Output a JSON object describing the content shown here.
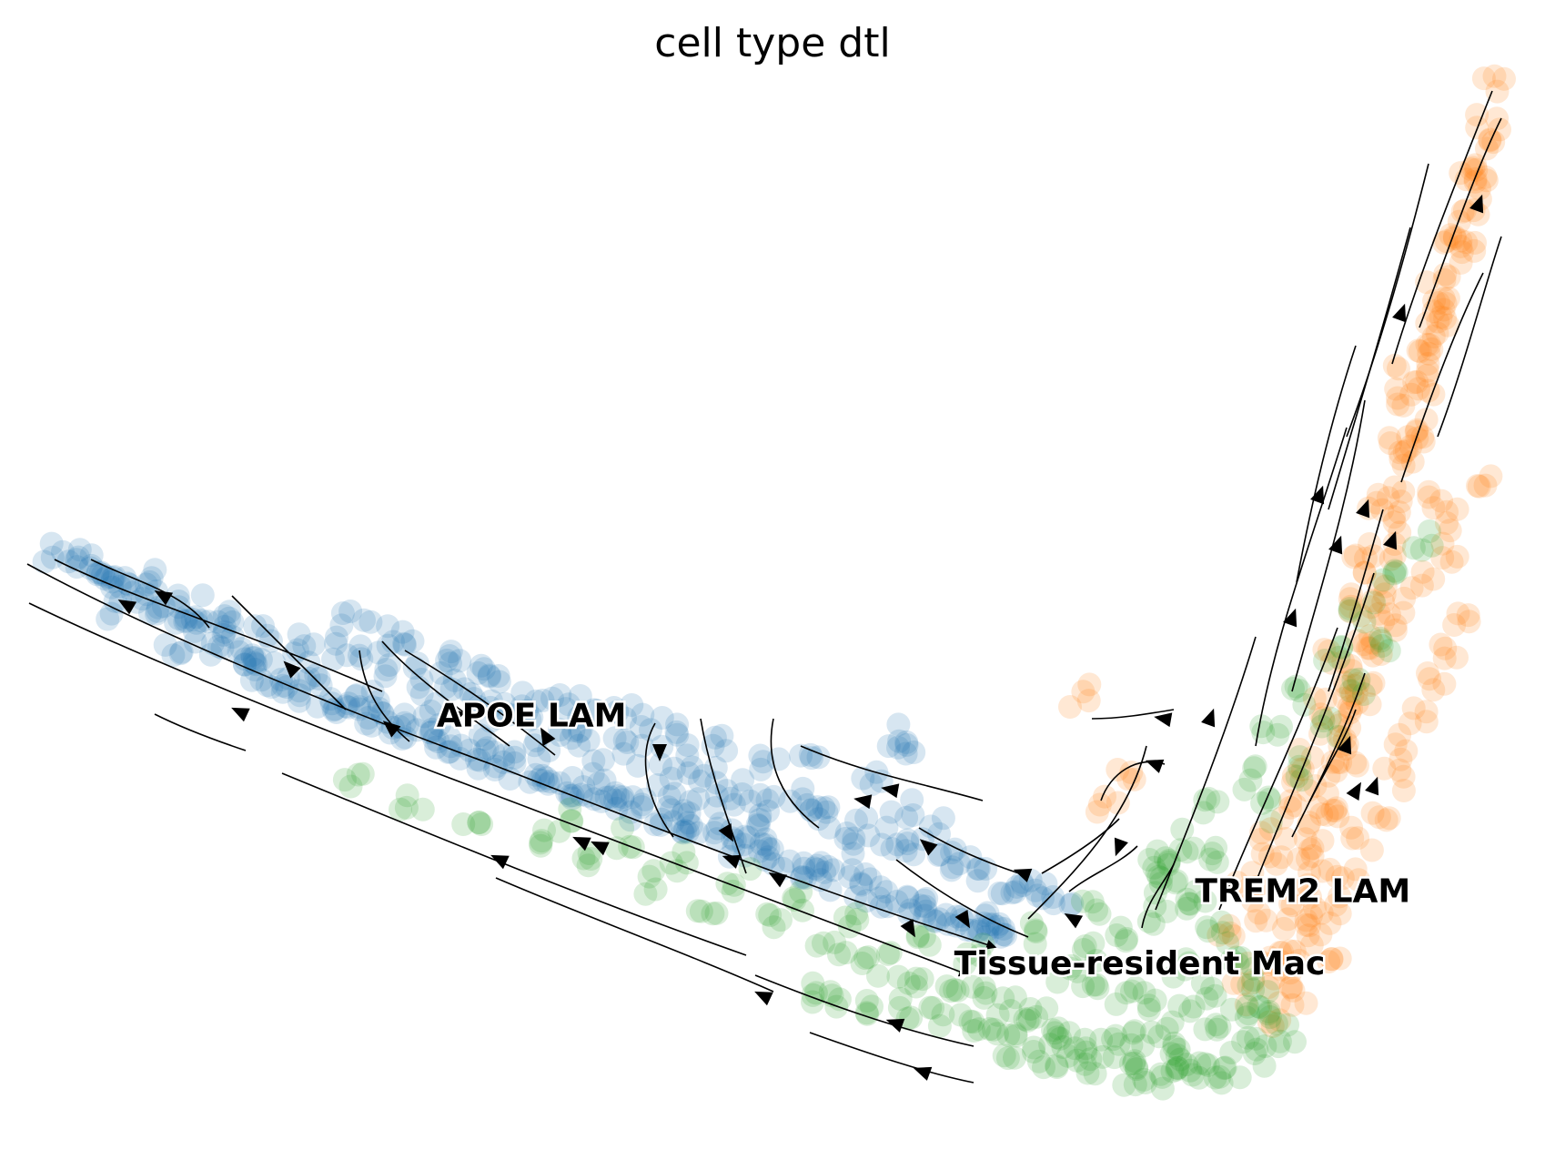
{
  "chart_data": {
    "type": "scatter",
    "title": "cell type dtl",
    "xlabel": "",
    "ylabel": "",
    "grid": false,
    "axes_visible": false,
    "legend": "on data",
    "overlay": "velocity streamlines with arrows",
    "x_range": [
      0,
      100
    ],
    "y_range": [
      0,
      100
    ],
    "series": [
      {
        "name": "APOE LAM",
        "color": "#1f77b4",
        "label_pos": [
          34,
          38
        ],
        "points": [
          [
            2,
            55
          ],
          [
            3,
            54.5
          ],
          [
            4,
            53.5
          ],
          [
            5,
            52.5
          ],
          [
            6,
            52
          ],
          [
            7,
            51
          ],
          [
            8,
            50
          ],
          [
            9,
            49
          ],
          [
            10,
            48.5
          ],
          [
            11,
            48
          ],
          [
            12,
            47
          ],
          [
            13,
            46
          ],
          [
            14,
            45
          ],
          [
            15,
            44
          ],
          [
            16,
            43.5
          ],
          [
            17,
            43
          ],
          [
            18,
            42
          ],
          [
            19,
            41.5
          ],
          [
            20,
            40.5
          ],
          [
            21,
            40
          ],
          [
            22,
            39.5
          ],
          [
            23,
            39
          ],
          [
            24,
            38.5
          ],
          [
            25,
            38
          ],
          [
            26,
            37.5
          ],
          [
            27,
            37
          ],
          [
            28,
            36.5
          ],
          [
            29,
            36
          ],
          [
            30,
            35.5
          ],
          [
            31,
            35
          ],
          [
            32,
            34.5
          ],
          [
            33,
            34
          ],
          [
            34,
            33.5
          ],
          [
            35,
            33
          ],
          [
            36,
            32.5
          ],
          [
            37,
            32
          ],
          [
            38,
            31.5
          ],
          [
            39,
            31
          ],
          [
            40,
            30.5
          ],
          [
            41,
            30
          ],
          [
            42,
            29.5
          ],
          [
            43,
            29
          ],
          [
            44,
            28.5
          ],
          [
            45,
            28
          ],
          [
            46,
            27.5
          ],
          [
            47,
            27
          ],
          [
            48,
            26.5
          ],
          [
            49,
            26
          ],
          [
            50,
            25.5
          ],
          [
            51,
            25
          ],
          [
            52,
            24.5
          ],
          [
            53,
            24
          ],
          [
            54,
            23.5
          ],
          [
            55,
            23
          ],
          [
            56,
            22.5
          ],
          [
            57,
            22
          ],
          [
            58,
            21.5
          ],
          [
            59,
            21
          ],
          [
            60,
            20.5
          ],
          [
            61,
            20
          ],
          [
            62,
            19.5
          ],
          [
            63,
            19
          ],
          [
            64,
            18.5
          ],
          [
            65,
            18
          ],
          [
            66,
            17.5
          ],
          [
            14,
            48
          ],
          [
            16,
            47
          ],
          [
            18,
            46
          ],
          [
            20,
            45.5
          ],
          [
            22,
            45
          ],
          [
            24,
            44
          ],
          [
            26,
            43
          ],
          [
            28,
            42
          ],
          [
            30,
            41
          ],
          [
            32,
            40
          ],
          [
            34,
            39
          ],
          [
            36,
            38
          ],
          [
            38,
            37
          ],
          [
            40,
            36
          ],
          [
            42,
            35
          ],
          [
            44,
            34
          ],
          [
            46,
            33
          ],
          [
            48,
            32
          ],
          [
            50,
            31
          ],
          [
            52,
            30
          ],
          [
            54,
            29
          ],
          [
            56,
            28
          ],
          [
            58,
            27
          ],
          [
            60,
            26
          ],
          [
            62,
            25
          ],
          [
            64,
            24
          ],
          [
            66,
            23
          ],
          [
            68,
            22
          ],
          [
            70,
            21
          ],
          [
            58,
            37
          ],
          [
            60,
            36
          ],
          [
            44,
            37
          ],
          [
            47,
            36
          ],
          [
            50,
            35
          ],
          [
            53,
            34.5
          ],
          [
            38,
            40
          ],
          [
            40,
            39
          ],
          [
            42,
            38
          ],
          [
            34,
            41
          ],
          [
            36,
            40.5
          ],
          [
            30,
            44
          ],
          [
            32,
            43
          ],
          [
            26,
            46
          ],
          [
            28,
            45
          ],
          [
            22,
            48
          ],
          [
            24,
            47
          ],
          [
            5,
            53
          ],
          [
            8,
            52
          ],
          [
            11,
            50
          ],
          [
            13,
            49
          ],
          [
            45,
            30
          ],
          [
            55,
            26
          ],
          [
            65,
            20
          ],
          [
            67,
            22
          ],
          [
            63,
            25
          ],
          [
            59,
            30
          ],
          [
            61,
            28
          ],
          [
            57,
            33
          ],
          [
            53,
            31
          ],
          [
            49,
            29
          ],
          [
            47,
            31
          ],
          [
            43,
            32
          ],
          [
            39,
            34
          ],
          [
            35,
            36
          ],
          [
            31,
            38
          ],
          [
            27,
            40
          ],
          [
            23,
            41
          ],
          [
            19,
            43
          ],
          [
            15,
            45
          ],
          [
            10,
            46
          ],
          [
            6,
            49
          ]
        ]
      },
      {
        "name": "TREM2 LAM",
        "color": "#ff7f0e",
        "label_pos": [
          86,
          21
        ],
        "points": [
          [
            99,
            100
          ],
          [
            98.5,
            97
          ],
          [
            98,
            94
          ],
          [
            97.5,
            91
          ],
          [
            97,
            88
          ],
          [
            96.5,
            85
          ],
          [
            96,
            82
          ],
          [
            95.5,
            79
          ],
          [
            95,
            76
          ],
          [
            94.5,
            73
          ],
          [
            94,
            70
          ],
          [
            93.5,
            67
          ],
          [
            93,
            64
          ],
          [
            92.5,
            61
          ],
          [
            92,
            58
          ],
          [
            91.5,
            55
          ],
          [
            91,
            52
          ],
          [
            90.5,
            49
          ],
          [
            90,
            46
          ],
          [
            89.5,
            43
          ],
          [
            89,
            40
          ],
          [
            88.5,
            37
          ],
          [
            88,
            34
          ],
          [
            87.5,
            31
          ],
          [
            87,
            28
          ],
          [
            86.5,
            25
          ],
          [
            86,
            22
          ],
          [
            85.5,
            19
          ],
          [
            85,
            16
          ],
          [
            84.5,
            13
          ],
          [
            84,
            10
          ],
          [
            86,
            12
          ],
          [
            88,
            15
          ],
          [
            87,
            18
          ],
          [
            88,
            21
          ],
          [
            89,
            24
          ],
          [
            90,
            27
          ],
          [
            91,
            30
          ],
          [
            92,
            33
          ],
          [
            93,
            36
          ],
          [
            94,
            39
          ],
          [
            95,
            42
          ],
          [
            96,
            45
          ],
          [
            97,
            48
          ],
          [
            96,
            55
          ],
          [
            95,
            60
          ],
          [
            94,
            66
          ],
          [
            93,
            72
          ],
          [
            95,
            78
          ],
          [
            97,
            84
          ],
          [
            98,
            90
          ],
          [
            92,
            50
          ],
          [
            91,
            45
          ],
          [
            90,
            40
          ],
          [
            89,
            35
          ],
          [
            88,
            30
          ],
          [
            87,
            25
          ],
          [
            86,
            20
          ],
          [
            85,
            15
          ],
          [
            83,
            20
          ],
          [
            84,
            25
          ],
          [
            85,
            30
          ],
          [
            86,
            35
          ],
          [
            87,
            40
          ],
          [
            88,
            45
          ],
          [
            89,
            50
          ],
          [
            90,
            55
          ],
          [
            91,
            60
          ],
          [
            92,
            65
          ],
          [
            93,
            70
          ],
          [
            94,
            75
          ],
          [
            95,
            80
          ],
          [
            96,
            86
          ],
          [
            97,
            92
          ],
          [
            83,
            15
          ],
          [
            82,
            12
          ],
          [
            81,
            18
          ],
          [
            82,
            23
          ],
          [
            84,
            28
          ],
          [
            86,
            33
          ],
          [
            88,
            38
          ],
          [
            90,
            43
          ],
          [
            92,
            48
          ],
          [
            94,
            52
          ],
          [
            96,
            58
          ],
          [
            98,
            62
          ],
          [
            71,
            41
          ],
          [
            73,
            30
          ],
          [
            74,
            34
          ]
        ]
      },
      {
        "name": "Tissue-resident Mac",
        "color": "#2ca02c",
        "label_pos": [
          75,
          14
        ],
        "points": [
          [
            53,
            12
          ],
          [
            55,
            11.5
          ],
          [
            57,
            11
          ],
          [
            59,
            10.5
          ],
          [
            61,
            10
          ],
          [
            63,
            9.5
          ],
          [
            65,
            9
          ],
          [
            67,
            8.5
          ],
          [
            69,
            8
          ],
          [
            71,
            7.5
          ],
          [
            73,
            7
          ],
          [
            75,
            6
          ],
          [
            77,
            5
          ],
          [
            79,
            4.5
          ],
          [
            81,
            5
          ],
          [
            83,
            6
          ],
          [
            85,
            8
          ],
          [
            84,
            10
          ],
          [
            83,
            12
          ],
          [
            82,
            14
          ],
          [
            81,
            16
          ],
          [
            80,
            18
          ],
          [
            79,
            20
          ],
          [
            78,
            22
          ],
          [
            77,
            24
          ],
          [
            76,
            25
          ],
          [
            78,
            27
          ],
          [
            80,
            30
          ],
          [
            82,
            33
          ],
          [
            84,
            37
          ],
          [
            86,
            41
          ],
          [
            88,
            45
          ],
          [
            90,
            49
          ],
          [
            92,
            53
          ],
          [
            94,
            56
          ],
          [
            66,
            7
          ],
          [
            68,
            6
          ],
          [
            70,
            5.5
          ],
          [
            72,
            5
          ],
          [
            74,
            4.5
          ],
          [
            76,
            4
          ],
          [
            78,
            4
          ],
          [
            80,
            4.5
          ],
          [
            82,
            7
          ],
          [
            80,
            9
          ],
          [
            78,
            10
          ],
          [
            76,
            11
          ],
          [
            74,
            12
          ],
          [
            72,
            13
          ],
          [
            70,
            14
          ],
          [
            72,
            16
          ],
          [
            74,
            18
          ],
          [
            76,
            20
          ],
          [
            78,
            15
          ],
          [
            80,
            12
          ],
          [
            82,
            10
          ],
          [
            74,
            8
          ],
          [
            76,
            8
          ],
          [
            78,
            7
          ],
          [
            70,
            9
          ],
          [
            68,
            10
          ],
          [
            66,
            11
          ],
          [
            64,
            12
          ],
          [
            62,
            13
          ],
          [
            60,
            14
          ],
          [
            58,
            15
          ],
          [
            56,
            16
          ],
          [
            54,
            17
          ],
          [
            50,
            19
          ],
          [
            46,
            21
          ],
          [
            42,
            23
          ],
          [
            38,
            25
          ],
          [
            34,
            27
          ],
          [
            30,
            29
          ],
          [
            26,
            31
          ],
          [
            22,
            33
          ],
          [
            36,
            29
          ],
          [
            40,
            27
          ],
          [
            44,
            25
          ],
          [
            48,
            23
          ],
          [
            52,
            21
          ],
          [
            56,
            19
          ],
          [
            60,
            17
          ],
          [
            64,
            16
          ],
          [
            68,
            18
          ],
          [
            72,
            20
          ],
          [
            76,
            23
          ],
          [
            80,
            26
          ],
          [
            84,
            30
          ],
          [
            86,
            34
          ],
          [
            88,
            38
          ],
          [
            90,
            42
          ],
          [
            92,
            46
          ]
        ]
      }
    ]
  }
}
